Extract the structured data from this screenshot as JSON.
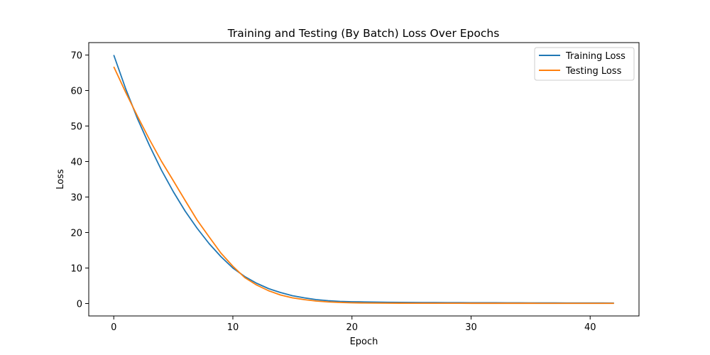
{
  "chart_data": {
    "type": "line",
    "title": "Training and Testing (By Batch) Loss Over Epochs",
    "xlabel": "Epoch",
    "ylabel": "Loss",
    "xlim": [
      -2.1,
      44.1
    ],
    "ylim": [
      -3.5,
      73.5
    ],
    "xticks": [
      0,
      10,
      20,
      30,
      40
    ],
    "yticks": [
      0,
      10,
      20,
      30,
      40,
      50,
      60,
      70
    ],
    "grid": false,
    "legend_position": "top-right",
    "x": [
      0,
      1,
      2,
      3,
      4,
      5,
      6,
      7,
      8,
      9,
      10,
      11,
      12,
      13,
      14,
      15,
      16,
      17,
      18,
      19,
      20,
      21,
      22,
      23,
      24,
      25,
      26,
      27,
      28,
      29,
      30,
      31,
      32,
      33,
      34,
      35,
      36,
      37,
      38,
      39,
      40,
      41,
      42
    ],
    "series": [
      {
        "name": "Training Loss",
        "color": "#1f77b4",
        "values": [
          70.0,
          60.5,
          52.0,
          44.5,
          37.6,
          31.5,
          26.0,
          21.2,
          16.9,
          13.2,
          10.0,
          7.6,
          5.7,
          4.2,
          3.1,
          2.2,
          1.6,
          1.1,
          0.8,
          0.6,
          0.5,
          0.45,
          0.4,
          0.35,
          0.32,
          0.3,
          0.28,
          0.26,
          0.25,
          0.24,
          0.23,
          0.22,
          0.21,
          0.2,
          0.19,
          0.18,
          0.17,
          0.16,
          0.15,
          0.15,
          0.14,
          0.14,
          0.13
        ]
      },
      {
        "name": "Testing Loss",
        "color": "#ff7f0e",
        "values": [
          66.7,
          59.5,
          52.7,
          46.2,
          40.1,
          34.6,
          29.0,
          23.5,
          18.8,
          14.2,
          10.5,
          7.3,
          5.2,
          3.6,
          2.4,
          1.6,
          1.1,
          0.7,
          0.45,
          0.3,
          0.2,
          0.15,
          0.12,
          0.1,
          0.09,
          0.08,
          0.08,
          0.07,
          0.07,
          0.07,
          0.06,
          0.06,
          0.06,
          0.06,
          0.06,
          0.06,
          0.05,
          0.05,
          0.05,
          0.05,
          0.05,
          0.05,
          0.05
        ]
      }
    ]
  }
}
